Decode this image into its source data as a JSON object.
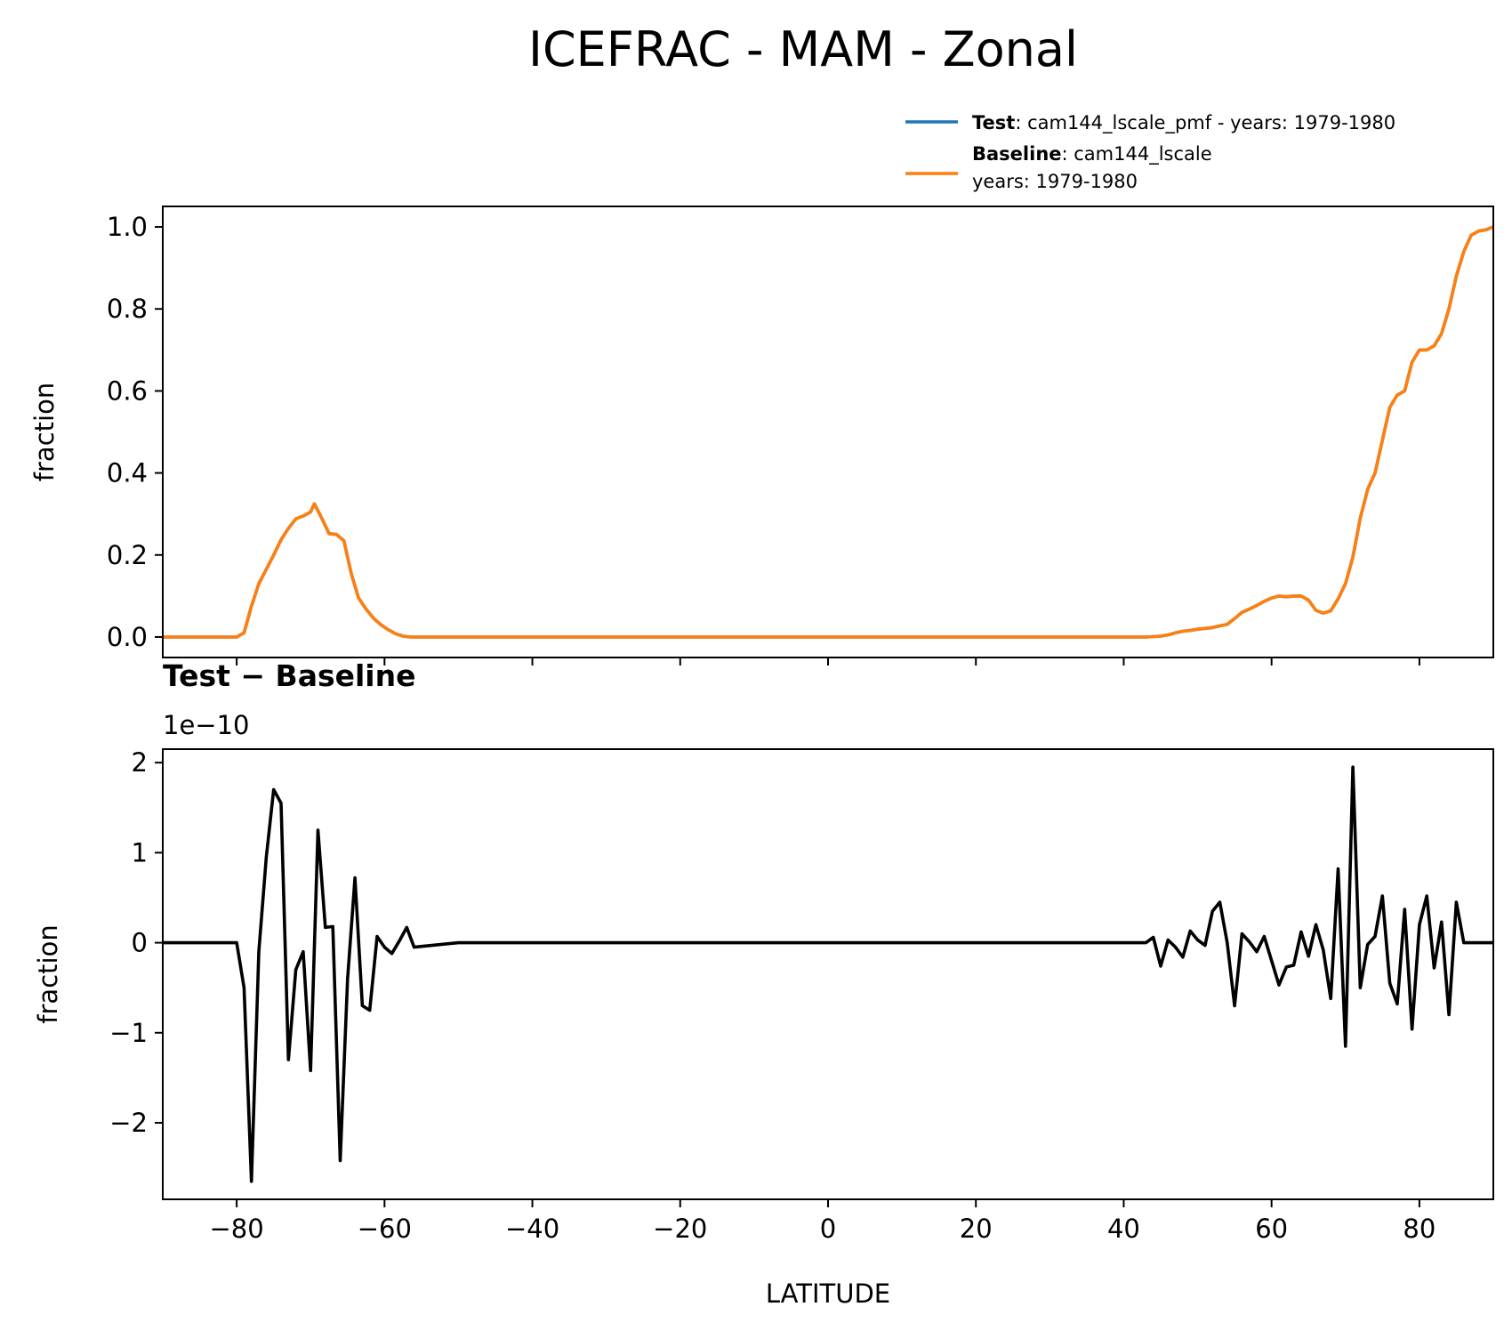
{
  "chart_data": {
    "type": "line",
    "title": "ICEFRAC - MAM - Zonal",
    "legend": {
      "placement": "top-right",
      "entries": [
        {
          "bold": "Test",
          "text": ": cam144_lscale_pmf - years: 1979-1980",
          "text2": "",
          "color": "#1f77b4"
        },
        {
          "bold": "Baseline",
          "text": ": cam144_lscale",
          "text2": "years: 1979-1980",
          "color": "#ff7f0e"
        }
      ]
    },
    "panels": [
      {
        "ylabel": "fraction",
        "xlim": [
          -90,
          90
        ],
        "ylim": [
          -0.05,
          1.05
        ],
        "yticks": [
          0.0,
          0.2,
          0.4,
          0.6,
          0.8,
          1.0
        ],
        "ytick_labels": [
          "0.0",
          "0.2",
          "0.4",
          "0.6",
          "0.8",
          "1.0"
        ],
        "series": [
          {
            "name": "Test",
            "color": "#1f77b4",
            "x": [
              -90,
              -80,
              -79,
              -78,
              -77,
              -76,
              -75,
              -74,
              -73,
              -72,
              -71,
              -70,
              -69.5,
              -68.5,
              -67.5,
              -66.5,
              -65.5,
              -64.5,
              -63.5,
              -62.5,
              -61.5,
              -60.5,
              -59.5,
              -58.5,
              -57.5,
              -56.5,
              -55,
              -50,
              0,
              40,
              43,
              45,
              46,
              47,
              48,
              49,
              50,
              51,
              52,
              53,
              54,
              55,
              56,
              57,
              58,
              59,
              60,
              61,
              62,
              63,
              64,
              65,
              66,
              67,
              68,
              69,
              70,
              71,
              72,
              73,
              74,
              75,
              76,
              77,
              78,
              79,
              80,
              81,
              82,
              83,
              84,
              85,
              86,
              87,
              88,
              89,
              90
            ],
            "y": [
              0,
              0,
              0.01,
              0.075,
              0.13,
              0.165,
              0.2,
              0.237,
              0.265,
              0.288,
              0.295,
              0.305,
              0.325,
              0.29,
              0.252,
              0.25,
              0.235,
              0.155,
              0.095,
              0.068,
              0.046,
              0.03,
              0.018,
              0.008,
              0.002,
              0,
              0,
              0,
              0,
              0,
              0,
              0.002,
              0.005,
              0.01,
              0.014,
              0.016,
              0.019,
              0.021,
              0.023,
              0.027,
              0.031,
              0.045,
              0.06,
              0.068,
              0.077,
              0.087,
              0.095,
              0.1,
              0.098,
              0.1,
              0.1,
              0.09,
              0.065,
              0.058,
              0.064,
              0.093,
              0.13,
              0.195,
              0.29,
              0.36,
              0.4,
              0.48,
              0.56,
              0.59,
              0.6,
              0.67,
              0.7,
              0.7,
              0.71,
              0.74,
              0.8,
              0.88,
              0.94,
              0.98,
              0.99,
              0.993,
              1.0
            ],
            "note": ""
          },
          {
            "name": "Baseline",
            "color": "#ff7f0e",
            "x": [
              -90,
              -80,
              -79,
              -78,
              -77,
              -76,
              -75,
              -74,
              -73,
              -72,
              -71,
              -70,
              -69.5,
              -68.5,
              -67.5,
              -66.5,
              -65.5,
              -64.5,
              -63.5,
              -62.5,
              -61.5,
              -60.5,
              -59.5,
              -58.5,
              -57.5,
              -56.5,
              -55,
              -50,
              0,
              40,
              43,
              45,
              46,
              47,
              48,
              49,
              50,
              51,
              52,
              53,
              54,
              55,
              56,
              57,
              58,
              59,
              60,
              61,
              62,
              63,
              64,
              65,
              66,
              67,
              68,
              69,
              70,
              71,
              72,
              73,
              74,
              75,
              76,
              77,
              78,
              79,
              80,
              81,
              82,
              83,
              84,
              85,
              86,
              87,
              88,
              89,
              90
            ],
            "y": [
              0,
              0,
              0.01,
              0.075,
              0.13,
              0.165,
              0.2,
              0.237,
              0.265,
              0.288,
              0.295,
              0.305,
              0.325,
              0.29,
              0.252,
              0.25,
              0.235,
              0.155,
              0.095,
              0.068,
              0.046,
              0.03,
              0.018,
              0.008,
              0.002,
              0,
              0,
              0,
              0,
              0,
              0,
              0.002,
              0.005,
              0.01,
              0.014,
              0.016,
              0.019,
              0.021,
              0.023,
              0.027,
              0.031,
              0.045,
              0.06,
              0.068,
              0.077,
              0.087,
              0.095,
              0.1,
              0.098,
              0.1,
              0.1,
              0.09,
              0.065,
              0.058,
              0.064,
              0.093,
              0.13,
              0.195,
              0.29,
              0.36,
              0.4,
              0.48,
              0.56,
              0.59,
              0.6,
              0.67,
              0.7,
              0.7,
              0.71,
              0.74,
              0.8,
              0.88,
              0.94,
              0.98,
              0.99,
              0.993,
              1.0
            ]
          }
        ]
      },
      {
        "title": "Test − Baseline",
        "ylabel": "fraction",
        "xlabel": "LATITUDE",
        "offset_label": "1e−10",
        "xlim": [
          -90,
          90
        ],
        "ylim": [
          -2.85,
          2.15
        ],
        "yticks": [
          -2,
          -1,
          0,
          1,
          2
        ],
        "ytick_labels": [
          "−2",
          "−1",
          "0",
          "1",
          "2"
        ],
        "xticks": [
          -80,
          -60,
          -40,
          -20,
          0,
          20,
          40,
          60,
          80
        ],
        "xtick_labels": [
          "−80",
          "−60",
          "−40",
          "−20",
          "0",
          "20",
          "40",
          "60",
          "80"
        ],
        "series": [
          {
            "name": "",
            "color": "#000000",
            "x": [
              -90,
              -80,
              -79,
              -78,
              -77,
              -76,
              -75,
              -74,
              -73,
              -72,
              -71,
              -70,
              -69,
              -68,
              -67,
              -66,
              -65,
              -64,
              -63,
              -62,
              -61,
              -60,
              -59,
              -58,
              -57,
              -56,
              -50,
              0,
              40,
              43,
              44,
              45,
              46,
              47,
              48,
              49,
              50,
              51,
              52,
              53,
              54,
              55,
              56,
              57,
              58,
              59,
              60,
              61,
              62,
              63,
              64,
              65,
              66,
              67,
              68,
              69,
              70,
              71,
              72,
              73,
              74,
              75,
              76,
              77,
              78,
              79,
              80,
              81,
              82,
              83,
              84,
              85,
              86,
              87,
              88,
              89,
              90
            ],
            "y": [
              0,
              0,
              -0.5,
              -2.65,
              -0.1,
              0.95,
              1.7,
              1.55,
              -1.3,
              -0.3,
              -0.1,
              -1.42,
              1.25,
              0.17,
              0.18,
              -2.42,
              -0.4,
              0.72,
              -0.7,
              -0.75,
              0.07,
              -0.05,
              -0.12,
              0.02,
              0.17,
              -0.05,
              0,
              0,
              0,
              0,
              0.06,
              -0.26,
              0.03,
              -0.05,
              -0.16,
              0.13,
              0.03,
              -0.03,
              0.35,
              0.45,
              0,
              -0.7,
              0.1,
              0.01,
              -0.1,
              0.07,
              -0.2,
              -0.47,
              -0.27,
              -0.25,
              0.12,
              -0.15,
              0.2,
              -0.08,
              -0.62,
              0.82,
              -1.15,
              1.95,
              -0.5,
              -0.02,
              0.07,
              0.52,
              -0.45,
              -0.68,
              0.37,
              -0.96,
              0.2,
              0.52,
              -0.28,
              0.23,
              -0.8,
              0.45,
              0,
              0,
              0,
              0,
              0
            ]
          }
        ]
      }
    ]
  }
}
